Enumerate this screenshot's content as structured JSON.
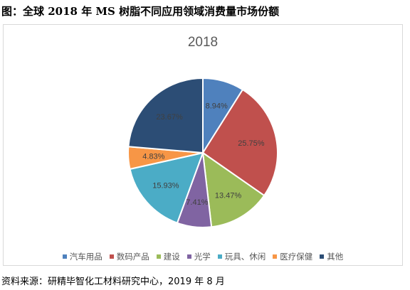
{
  "figure_title": "图：全球 2018 年 MS 树脂不同应用领域消费量市场份额",
  "source": "资料来源：研精毕智化工材料研究中心，2019 年 8 月",
  "chart_data": {
    "type": "pie",
    "title": "2018",
    "legend_position": "bottom",
    "categories": [
      "汽车用品",
      "数码产品",
      "建设",
      "光学",
      "玩具、休闲",
      "医疗保健",
      "其他"
    ],
    "values": [
      8.94,
      25.75,
      13.47,
      7.41,
      15.93,
      4.83,
      23.67
    ],
    "labels": [
      "8.94%",
      "25.75%",
      "13.47%",
      "7.41%",
      "15.93%",
      "4.83%",
      "23.67%"
    ],
    "colors": [
      "#4f81bd",
      "#c0504d",
      "#9bbb59",
      "#8064a2",
      "#4bacc6",
      "#f79646",
      "#2c4d75"
    ]
  }
}
